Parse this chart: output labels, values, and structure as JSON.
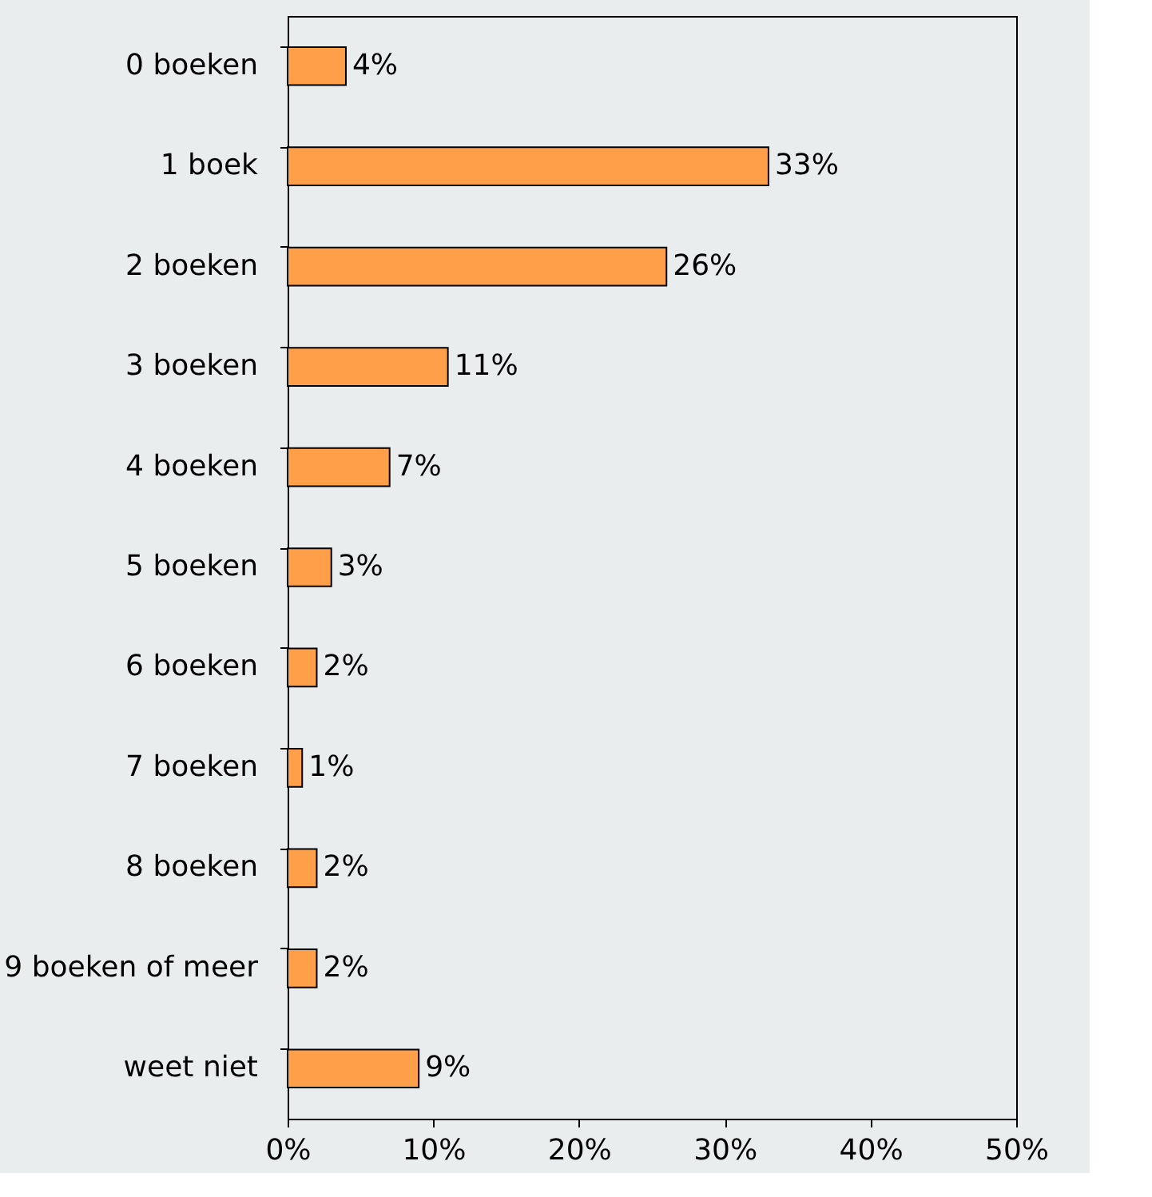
{
  "chart_data": {
    "type": "bar",
    "orientation": "horizontal",
    "categories": [
      "0 boeken",
      "1 boek",
      "2 boeken",
      "3 boeken",
      "4 boeken",
      "5 boeken",
      "6 boeken",
      "7 boeken",
      "8 boeken",
      "9 boeken of meer",
      "weet niet"
    ],
    "values": [
      4,
      33,
      26,
      11,
      7,
      3,
      2,
      1,
      2,
      2,
      9
    ],
    "value_labels": [
      "4%",
      "33%",
      "26%",
      "11%",
      "7%",
      "3%",
      "2%",
      "1%",
      "2%",
      "2%",
      "9%"
    ],
    "color": "#ff9f4a",
    "xlim": [
      0,
      50
    ],
    "xticks": [
      {
        "value": 0,
        "label": "0%"
      },
      {
        "value": 10,
        "label": "10%"
      },
      {
        "value": 20,
        "label": "20%"
      },
      {
        "value": 30,
        "label": "30%"
      },
      {
        "value": 40,
        "label": "40%"
      },
      {
        "value": 50,
        "label": "50%"
      }
    ],
    "grid": false,
    "legend": false
  }
}
